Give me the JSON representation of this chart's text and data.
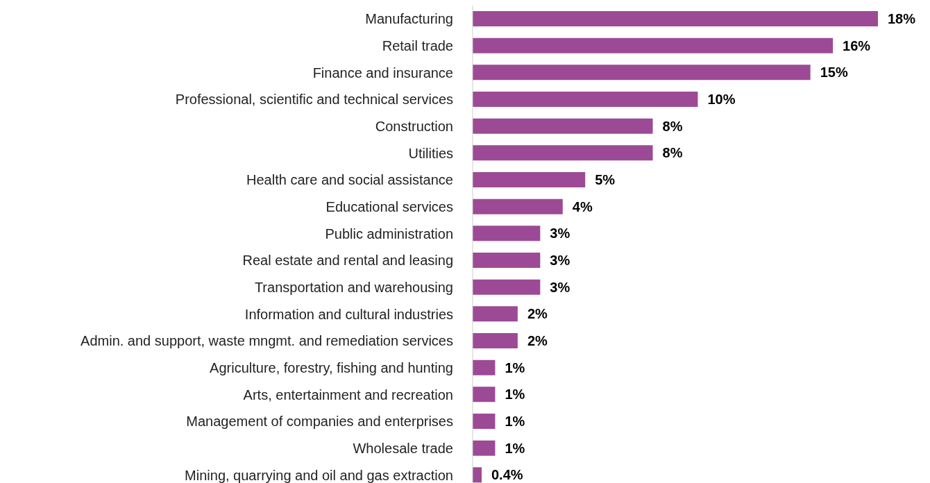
{
  "chart_data": {
    "type": "bar",
    "orientation": "horizontal",
    "categories": [
      "Manufacturing",
      "Retail trade",
      "Finance and insurance",
      "Professional, scientific and technical services",
      "Construction",
      "Utilities",
      "Health care and social assistance",
      "Educational services",
      "Public administration",
      "Real estate and rental and leasing",
      "Transportation and warehousing",
      "Information and cultural industries",
      "Admin. and support, waste mngmt. and remediation services",
      "Agriculture, forestry, fishing and hunting",
      "Arts, entertainment and recreation",
      "Management of companies and enterprises",
      "Wholesale trade",
      "Mining, quarrying and oil and gas extraction"
    ],
    "values": [
      18,
      16,
      15,
      10,
      8,
      8,
      5,
      4,
      3,
      3,
      3,
      2,
      2,
      1,
      1,
      1,
      1,
      0.4
    ],
    "value_labels": [
      "18%",
      "16%",
      "15%",
      "10%",
      "8%",
      "8%",
      "5%",
      "4%",
      "3%",
      "3%",
      "3%",
      "2%",
      "2%",
      "1%",
      "1%",
      "1%",
      "1%",
      "0.4%"
    ],
    "color": "#9c4a96",
    "grid": false,
    "legend": false
  }
}
